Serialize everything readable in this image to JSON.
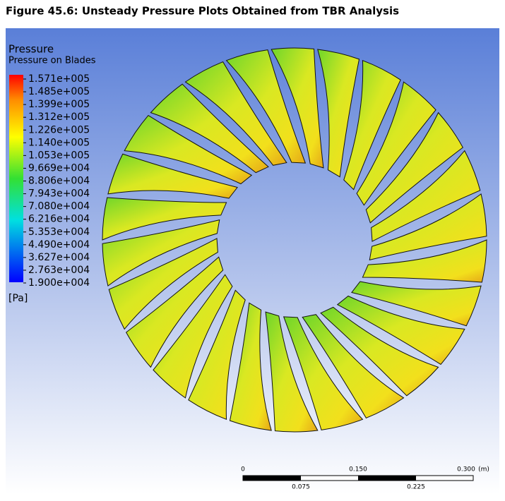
{
  "caption": "Figure 45.6: Unsteady Pressure Plots Obtained from TBR Analysis",
  "legend": {
    "title": "Pressure",
    "subtitle": "Pressure on Blades",
    "labels": [
      "1.571e+005",
      "1.485e+005",
      "1.399e+005",
      "1.312e+005",
      "1.226e+005",
      "1.140e+005",
      "1.053e+005",
      "9.669e+004",
      "8.806e+004",
      "7.943e+004",
      "7.080e+004",
      "6.216e+004",
      "5.353e+004",
      "4.490e+004",
      "3.627e+004",
      "2.763e+004",
      "1.900e+004"
    ],
    "unit": "[Pa]"
  },
  "scale_bar": {
    "top_labels": [
      "0",
      "0.150",
      "0.300"
    ],
    "unit": "(m)",
    "bottom_labels": [
      "0.075",
      "0.225"
    ]
  }
}
